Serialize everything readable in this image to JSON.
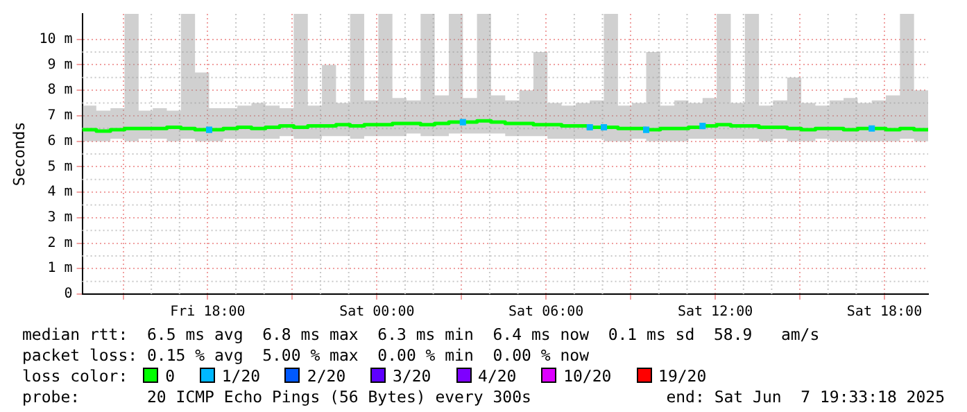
{
  "chart_data": {
    "type": "line",
    "ylabel": "Seconds",
    "xlim": [
      "2025-06-06T13:33",
      "2025-06-07T19:33"
    ],
    "xticks": [
      {
        "value": "2025-06-06T15:00",
        "label": null
      },
      {
        "value": "2025-06-06T18:00",
        "label": "Fri 18:00"
      },
      {
        "value": "2025-06-06T21:00",
        "label": null
      },
      {
        "value": "2025-06-07T00:00",
        "label": "Sat 00:00"
      },
      {
        "value": "2025-06-07T03:00",
        "label": null
      },
      {
        "value": "2025-06-07T06:00",
        "label": "Sat 06:00"
      },
      {
        "value": "2025-06-07T09:00",
        "label": null
      },
      {
        "value": "2025-06-07T12:00",
        "label": "Sat 12:00"
      },
      {
        "value": "2025-06-07T15:00",
        "label": null
      },
      {
        "value": "2025-06-07T18:00",
        "label": "Sat 18:00"
      }
    ],
    "ylim": [
      0,
      11
    ],
    "yticks": [
      0,
      {
        "value": 1,
        "label": "1 m"
      },
      {
        "value": 2,
        "label": "2 m"
      },
      {
        "value": 3,
        "label": "3 m"
      },
      {
        "value": 4,
        "label": "4 m"
      },
      {
        "value": 5,
        "label": "5 m"
      },
      {
        "value": 6,
        "label": "6 m"
      },
      {
        "value": 7,
        "label": "7 m"
      },
      {
        "value": 8,
        "label": "8 m"
      },
      {
        "value": 9,
        "label": "9 m"
      },
      {
        "value": 10,
        "label": "10 m"
      }
    ],
    "grid": true,
    "legend": "bottom",
    "legend_title": "loss color:",
    "x": [
      "2025-06-06T13:33",
      "2025-06-06T14:03",
      "2025-06-06T14:33",
      "2025-06-06T15:03",
      "2025-06-06T15:33",
      "2025-06-06T16:03",
      "2025-06-06T16:33",
      "2025-06-06T17:03",
      "2025-06-06T17:33",
      "2025-06-06T18:03",
      "2025-06-06T18:33",
      "2025-06-06T19:03",
      "2025-06-06T19:33",
      "2025-06-06T20:03",
      "2025-06-06T20:33",
      "2025-06-06T21:03",
      "2025-06-06T21:33",
      "2025-06-06T22:03",
      "2025-06-06T22:33",
      "2025-06-06T23:03",
      "2025-06-06T23:33",
      "2025-06-07T00:03",
      "2025-06-07T00:33",
      "2025-06-07T01:03",
      "2025-06-07T01:33",
      "2025-06-07T02:03",
      "2025-06-07T02:33",
      "2025-06-07T03:03",
      "2025-06-07T03:33",
      "2025-06-07T04:03",
      "2025-06-07T04:33",
      "2025-06-07T05:03",
      "2025-06-07T05:33",
      "2025-06-07T06:03",
      "2025-06-07T06:33",
      "2025-06-07T07:03",
      "2025-06-07T07:33",
      "2025-06-07T08:03",
      "2025-06-07T08:33",
      "2025-06-07T09:03",
      "2025-06-07T09:33",
      "2025-06-07T10:03",
      "2025-06-07T10:33",
      "2025-06-07T11:03",
      "2025-06-07T11:33",
      "2025-06-07T12:03",
      "2025-06-07T12:33",
      "2025-06-07T13:03",
      "2025-06-07T13:33",
      "2025-06-07T14:03",
      "2025-06-07T14:33",
      "2025-06-07T15:03",
      "2025-06-07T15:33",
      "2025-06-07T16:03",
      "2025-06-07T16:33",
      "2025-06-07T17:03",
      "2025-06-07T17:33",
      "2025-06-07T18:03",
      "2025-06-07T18:33",
      "2025-06-07T19:03",
      "2025-06-07T19:33"
    ],
    "series": [
      {
        "name": "0",
        "color": "#00ff00",
        "values": [
          6.45,
          6.4,
          6.45,
          6.5,
          6.5,
          6.5,
          6.55,
          6.5,
          6.45,
          6.45,
          6.5,
          6.55,
          6.5,
          6.55,
          6.6,
          6.55,
          6.6,
          6.6,
          6.65,
          6.6,
          6.65,
          6.65,
          6.7,
          6.7,
          6.65,
          6.7,
          6.75,
          6.75,
          6.8,
          6.75,
          6.7,
          6.7,
          6.65,
          6.65,
          6.6,
          6.6,
          6.55,
          6.55,
          6.5,
          6.5,
          6.45,
          6.5,
          6.5,
          6.55,
          6.6,
          6.65,
          6.6,
          6.6,
          6.55,
          6.55,
          6.5,
          6.45,
          6.5,
          6.5,
          6.45,
          6.5,
          6.5,
          6.45,
          6.5,
          6.45,
          6.45
        ],
        "lower": [
          6.0,
          6.0,
          6.1,
          6.0,
          6.1,
          6.1,
          6.0,
          6.1,
          6.0,
          6.0,
          6.1,
          6.1,
          6.1,
          6.1,
          6.2,
          6.1,
          6.1,
          6.2,
          6.2,
          6.1,
          6.2,
          6.2,
          6.2,
          6.3,
          6.2,
          6.2,
          6.3,
          6.3,
          6.3,
          6.3,
          6.2,
          6.2,
          6.2,
          6.1,
          6.1,
          6.1,
          6.1,
          6.0,
          6.0,
          6.1,
          6.0,
          6.0,
          6.0,
          6.1,
          6.1,
          6.1,
          6.1,
          6.1,
          6.0,
          6.1,
          6.0,
          6.0,
          6.1,
          6.0,
          6.0,
          6.0,
          6.0,
          6.0,
          6.1,
          6.0,
          6.0
        ],
        "upper": [
          7.4,
          7.2,
          7.3,
          11,
          7.2,
          7.3,
          7.2,
          11,
          8.7,
          7.3,
          7.3,
          7.4,
          7.5,
          7.4,
          7.3,
          11,
          7.4,
          9,
          7.5,
          11,
          7.6,
          11,
          7.7,
          7.6,
          11,
          7.8,
          11,
          7.7,
          11,
          7.8,
          7.6,
          8,
          9.5,
          7.5,
          7.4,
          7.5,
          7.6,
          11,
          7.4,
          7.5,
          9.5,
          7.4,
          7.6,
          7.5,
          7.7,
          11,
          7.5,
          11,
          7.4,
          7.6,
          8.5,
          7.5,
          7.4,
          7.6,
          7.7,
          7.5,
          7.6,
          7.8,
          11,
          8,
          7.4
        ]
      },
      {
        "name": "1/20",
        "color": "#00b8ff",
        "type": "scatter",
        "marker": "square",
        "values": [
          null,
          null,
          null,
          null,
          null,
          null,
          null,
          null,
          null,
          6.45,
          null,
          null,
          null,
          null,
          null,
          null,
          null,
          null,
          null,
          null,
          null,
          null,
          null,
          null,
          null,
          null,
          null,
          6.75,
          null,
          null,
          null,
          null,
          null,
          null,
          null,
          null,
          6.55,
          6.55,
          null,
          null,
          6.45,
          null,
          null,
          null,
          6.6,
          null,
          null,
          null,
          null,
          null,
          null,
          null,
          null,
          null,
          null,
          null,
          6.5,
          null,
          null,
          null,
          null
        ]
      },
      {
        "name": "2/20",
        "color": "#0059ff",
        "type": "scatter",
        "values": [
          null,
          null,
          null,
          null,
          null,
          null,
          null,
          null,
          null,
          null,
          null,
          null,
          null,
          null,
          null,
          null,
          null,
          null,
          null,
          null,
          null,
          null,
          null,
          null,
          null,
          null,
          null,
          null,
          null,
          null,
          null,
          null,
          null,
          null,
          null,
          null,
          null,
          null,
          null,
          null,
          null,
          null,
          null,
          null,
          null,
          null,
          null,
          null,
          null,
          null,
          null,
          null,
          null,
          null,
          null,
          null,
          null,
          null,
          null,
          null,
          null
        ]
      },
      {
        "name": "3/20",
        "color": "#5e00ff",
        "type": "scatter",
        "values": [
          null,
          null,
          null,
          null,
          null,
          null,
          null,
          null,
          null,
          null,
          null,
          null,
          null,
          null,
          null,
          null,
          null,
          null,
          null,
          null,
          null,
          null,
          null,
          null,
          null,
          null,
          null,
          null,
          null,
          null,
          null,
          null,
          null,
          null,
          null,
          null,
          null,
          null,
          null,
          null,
          null,
          null,
          null,
          null,
          null,
          null,
          null,
          null,
          null,
          null,
          null,
          null,
          null,
          null,
          null,
          null,
          null,
          null,
          null,
          null,
          null
        ]
      },
      {
        "name": "4/20",
        "color": "#7e00ff",
        "type": "scatter",
        "values": [
          null,
          null,
          null,
          null,
          null,
          null,
          null,
          null,
          null,
          null,
          null,
          null,
          null,
          null,
          null,
          null,
          null,
          null,
          null,
          null,
          null,
          null,
          null,
          null,
          null,
          null,
          null,
          null,
          null,
          null,
          null,
          null,
          null,
          null,
          null,
          null,
          null,
          null,
          null,
          null,
          null,
          null,
          null,
          null,
          null,
          null,
          null,
          null,
          null,
          null,
          null,
          null,
          null,
          null,
          null,
          null,
          null,
          null,
          null,
          null,
          null
        ]
      },
      {
        "name": "10/20",
        "color": "#dd00ff",
        "type": "scatter",
        "values": [
          null,
          null,
          null,
          null,
          null,
          null,
          null,
          null,
          null,
          null,
          null,
          null,
          null,
          null,
          null,
          null,
          null,
          null,
          null,
          null,
          null,
          null,
          null,
          null,
          null,
          null,
          null,
          null,
          null,
          null,
          null,
          null,
          null,
          null,
          null,
          null,
          null,
          null,
          null,
          null,
          null,
          null,
          null,
          null,
          null,
          null,
          null,
          null,
          null,
          null,
          null,
          null,
          null,
          null,
          null,
          null,
          null,
          null,
          null,
          null,
          null
        ]
      },
      {
        "name": "19/20",
        "color": "#ff0000",
        "type": "scatter",
        "values": [
          null,
          null,
          null,
          null,
          null,
          null,
          null,
          null,
          null,
          null,
          null,
          null,
          null,
          null,
          null,
          null,
          null,
          null,
          null,
          null,
          null,
          null,
          null,
          null,
          null,
          null,
          null,
          null,
          null,
          null,
          null,
          null,
          null,
          null,
          null,
          null,
          null,
          null,
          null,
          null,
          null,
          null,
          null,
          null,
          null,
          null,
          null,
          null,
          null,
          null,
          null,
          null,
          null,
          null,
          null,
          null,
          null,
          null,
          null,
          null,
          null
        ]
      }
    ],
    "annotations": [
      "median rtt:  6.5 ms avg  6.8 ms max  6.3 ms min  6.4 ms now  0.1 ms sd  58.9   am/s",
      "packet loss: 0.15 % avg  5.00 % max  0.00 % min  0.00 % now",
      "probe:       20 ICMP Echo Pings (56 Bytes) every 300s",
      "end: Sat Jun  7 19:33:18 2025"
    ]
  }
}
